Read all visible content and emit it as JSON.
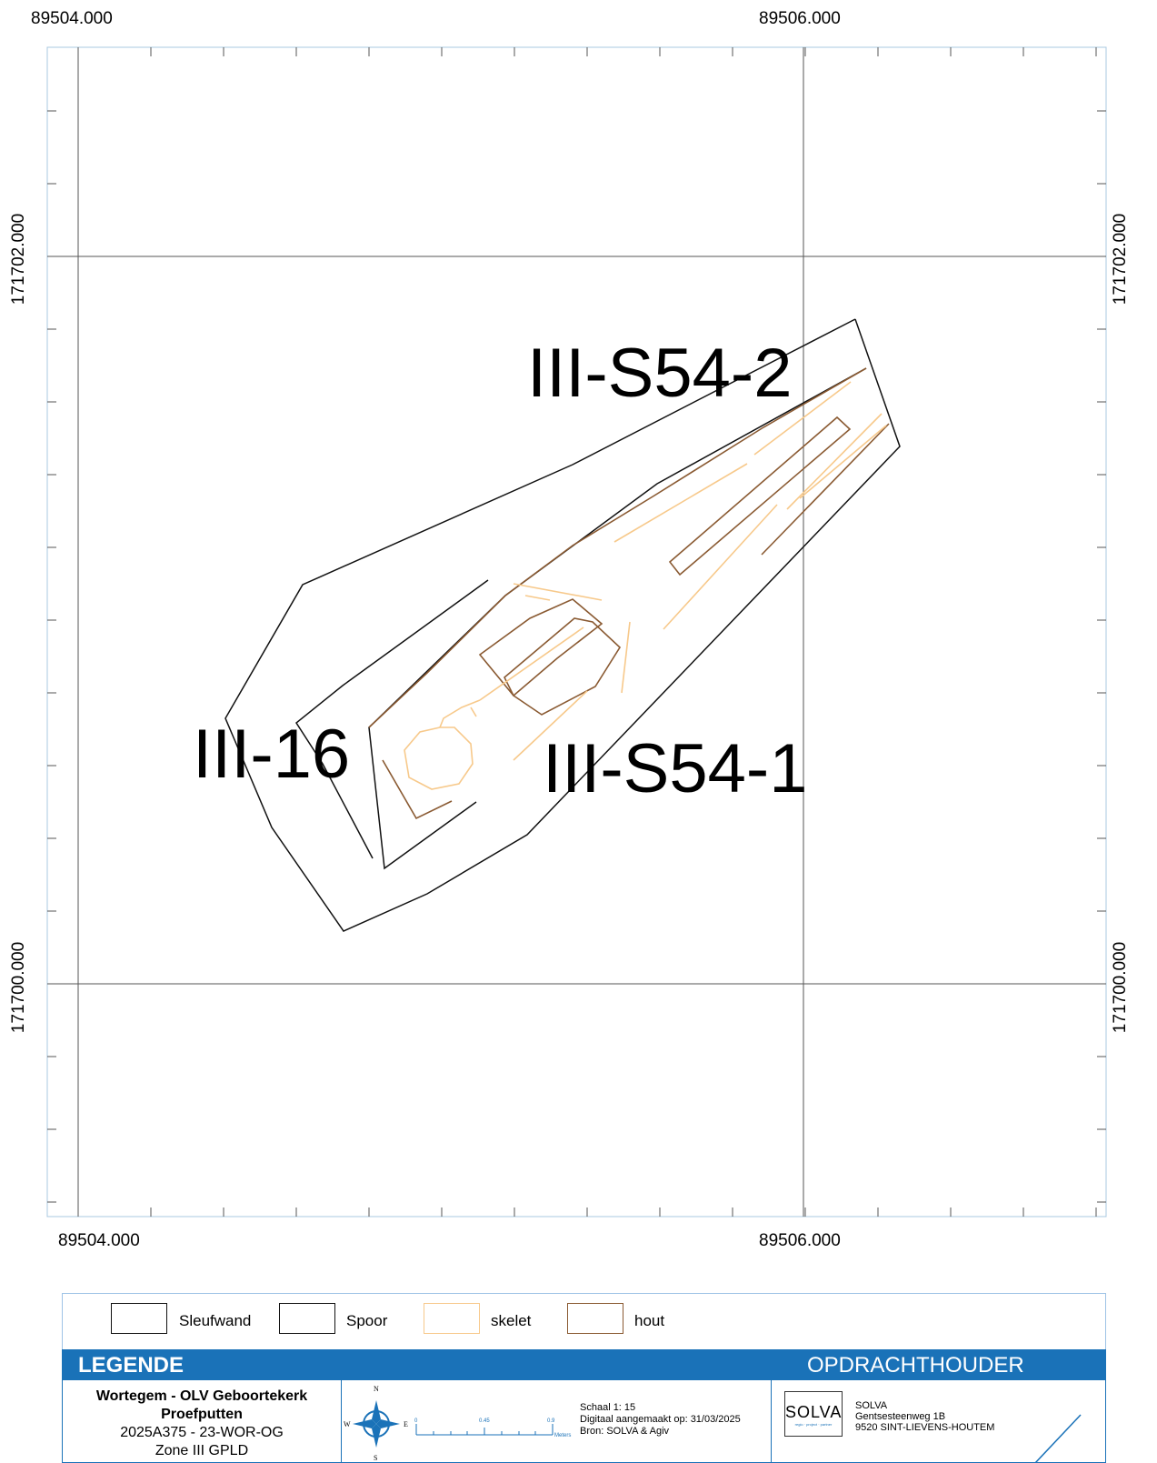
{
  "map": {
    "x_labels": {
      "left": "89504.000",
      "right": "89506.000"
    },
    "y_labels": {
      "upper": "171702.000",
      "lower": "171700.000"
    },
    "labels": {
      "s54_2": "III-S54-2",
      "s54_1": "III-S54-1",
      "iii_16": "III-16"
    },
    "colors": {
      "sleufwand": "#000000",
      "spoor": "#000000",
      "skelet": "#f7c98b",
      "hout": "#8a5a32"
    }
  },
  "legend": {
    "items": [
      {
        "label": "Sleufwand"
      },
      {
        "label": "Spoor"
      },
      {
        "label": "skelet"
      },
      {
        "label": "hout"
      }
    ],
    "title": "LEGENDE",
    "client_title": "OPDRACHTHOUDER"
  },
  "project": {
    "line1": "Wortegem - OLV Geboortekerk",
    "line2": "Proefputten",
    "line3": "2025A375 - 23-WOR-OG",
    "line4": "Zone III GPLD"
  },
  "scalebar": {
    "ticks": [
      "0",
      "0.45",
      "0.9"
    ],
    "unit": "Meters",
    "scale": "Schaal 1: 15",
    "made": "Digitaal aangemaakt op: 31/03/2025",
    "source": "Bron: SOLVA & Agiv"
  },
  "compass": {
    "n": "N",
    "s": "S",
    "e": "E",
    "w": "W"
  },
  "client": {
    "logo": "SOLVA",
    "logo_sub": "regio · project · partner",
    "name": "SOLVA",
    "street": "Gentsesteenweg 1B",
    "city": "9520 SINT-LIEVENS-HOUTEM"
  }
}
